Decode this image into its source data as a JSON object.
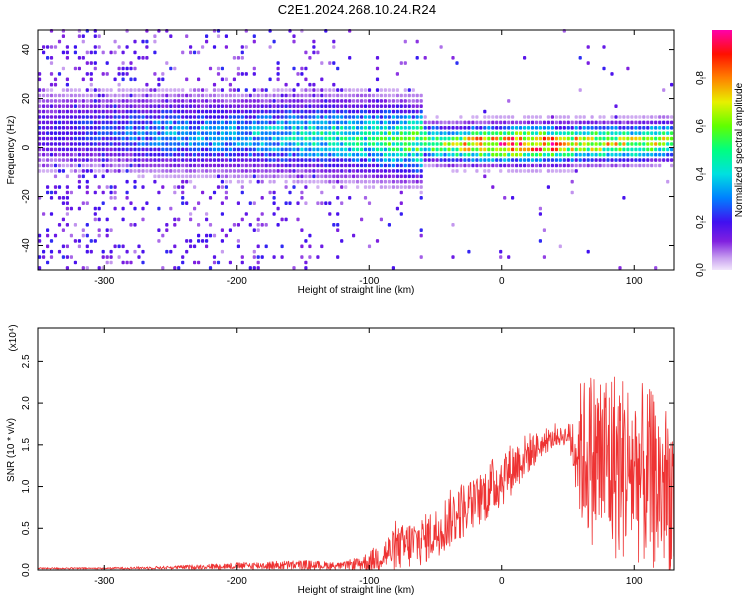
{
  "title": "C2E1.2024.268.10.24.R24",
  "chart_data": [
    {
      "type": "heatmap",
      "title": "C2E1.2024.268.10.24.R24",
      "xlabel": "Height of straight line (km)",
      "ylabel": "Frequency (Hz)",
      "xlim": [
        -350,
        130
      ],
      "ylim": [
        -50,
        48
      ],
      "x_ticks": [
        -300,
        -200,
        -100,
        0,
        100
      ],
      "y_ticks": [
        -40,
        -20,
        0,
        20,
        40
      ],
      "grid": false,
      "colorbar": {
        "label": "Normalized spectral amplitude",
        "range": [
          0,
          1
        ],
        "ticks": [
          0.0,
          0.2,
          0.4,
          0.6,
          0.8
        ],
        "tick_labels": [
          "0.0",
          "0.2",
          "0.4",
          "0.6",
          "0.8"
        ]
      },
      "ridge": {
        "x": [
          -350,
          -300,
          -250,
          -200,
          -150,
          -100,
          -80,
          -60,
          -40,
          -20,
          0,
          20,
          40,
          60,
          80,
          100,
          120,
          130
        ],
        "freq": [
          6,
          6,
          5,
          4,
          4,
          3,
          2,
          1.5,
          0.5,
          0.5,
          0.5,
          0.5,
          0.5,
          1,
          1,
          1,
          2,
          2
        ],
        "amplitude": [
          0.2,
          0.25,
          0.35,
          0.35,
          0.45,
          0.5,
          0.55,
          0.6,
          0.7,
          0.85,
          0.95,
          0.95,
          0.9,
          0.8,
          0.75,
          0.7,
          0.7,
          0.65
        ]
      }
    },
    {
      "type": "line",
      "xlabel": "Height of straight line (km)",
      "ylabel": "SNR (10 * v/v)",
      "scale_label": "(x10⁴)",
      "xlim": [
        -350,
        130
      ],
      "ylim": [
        0,
        2.9
      ],
      "x_ticks": [
        -300,
        -200,
        -100,
        0,
        100
      ],
      "y_ticks": [
        0.0,
        0.5,
        1.0,
        1.5,
        2.0,
        2.5
      ],
      "y_tick_labels": [
        "0.0",
        "0.5",
        "1.0",
        "1.5",
        "2.0",
        "2.5"
      ],
      "grid": false,
      "color": "#ee3333",
      "series": [
        {
          "x": [
            -350,
            -300,
            -250,
            -200,
            -150,
            -120,
            -100,
            -90,
            -80,
            -70,
            -60,
            -50,
            -40,
            -30,
            -20,
            -10,
            0,
            10,
            20,
            30,
            40,
            50,
            55,
            60,
            70,
            80,
            90,
            100,
            110,
            120,
            130
          ],
          "mean": [
            0.02,
            0.02,
            0.03,
            0.05,
            0.06,
            0.05,
            0.1,
            0.18,
            0.25,
            0.3,
            0.35,
            0.45,
            0.6,
            0.72,
            0.8,
            0.95,
            1.1,
            1.25,
            1.4,
            1.5,
            1.58,
            1.62,
            1.5,
            1.4,
            1.35,
            1.3,
            1.25,
            1.2,
            1.1,
            1.0,
            0.95
          ],
          "spread": [
            0.01,
            0.01,
            0.02,
            0.04,
            0.06,
            0.04,
            0.12,
            0.2,
            0.25,
            0.3,
            0.3,
            0.3,
            0.35,
            0.35,
            0.3,
            0.35,
            0.35,
            0.3,
            0.25,
            0.15,
            0.1,
            0.12,
            0.5,
            0.9,
            1.1,
            1.2,
            1.15,
            1.1,
            1.1,
            1.05,
            1.0
          ]
        }
      ]
    }
  ]
}
